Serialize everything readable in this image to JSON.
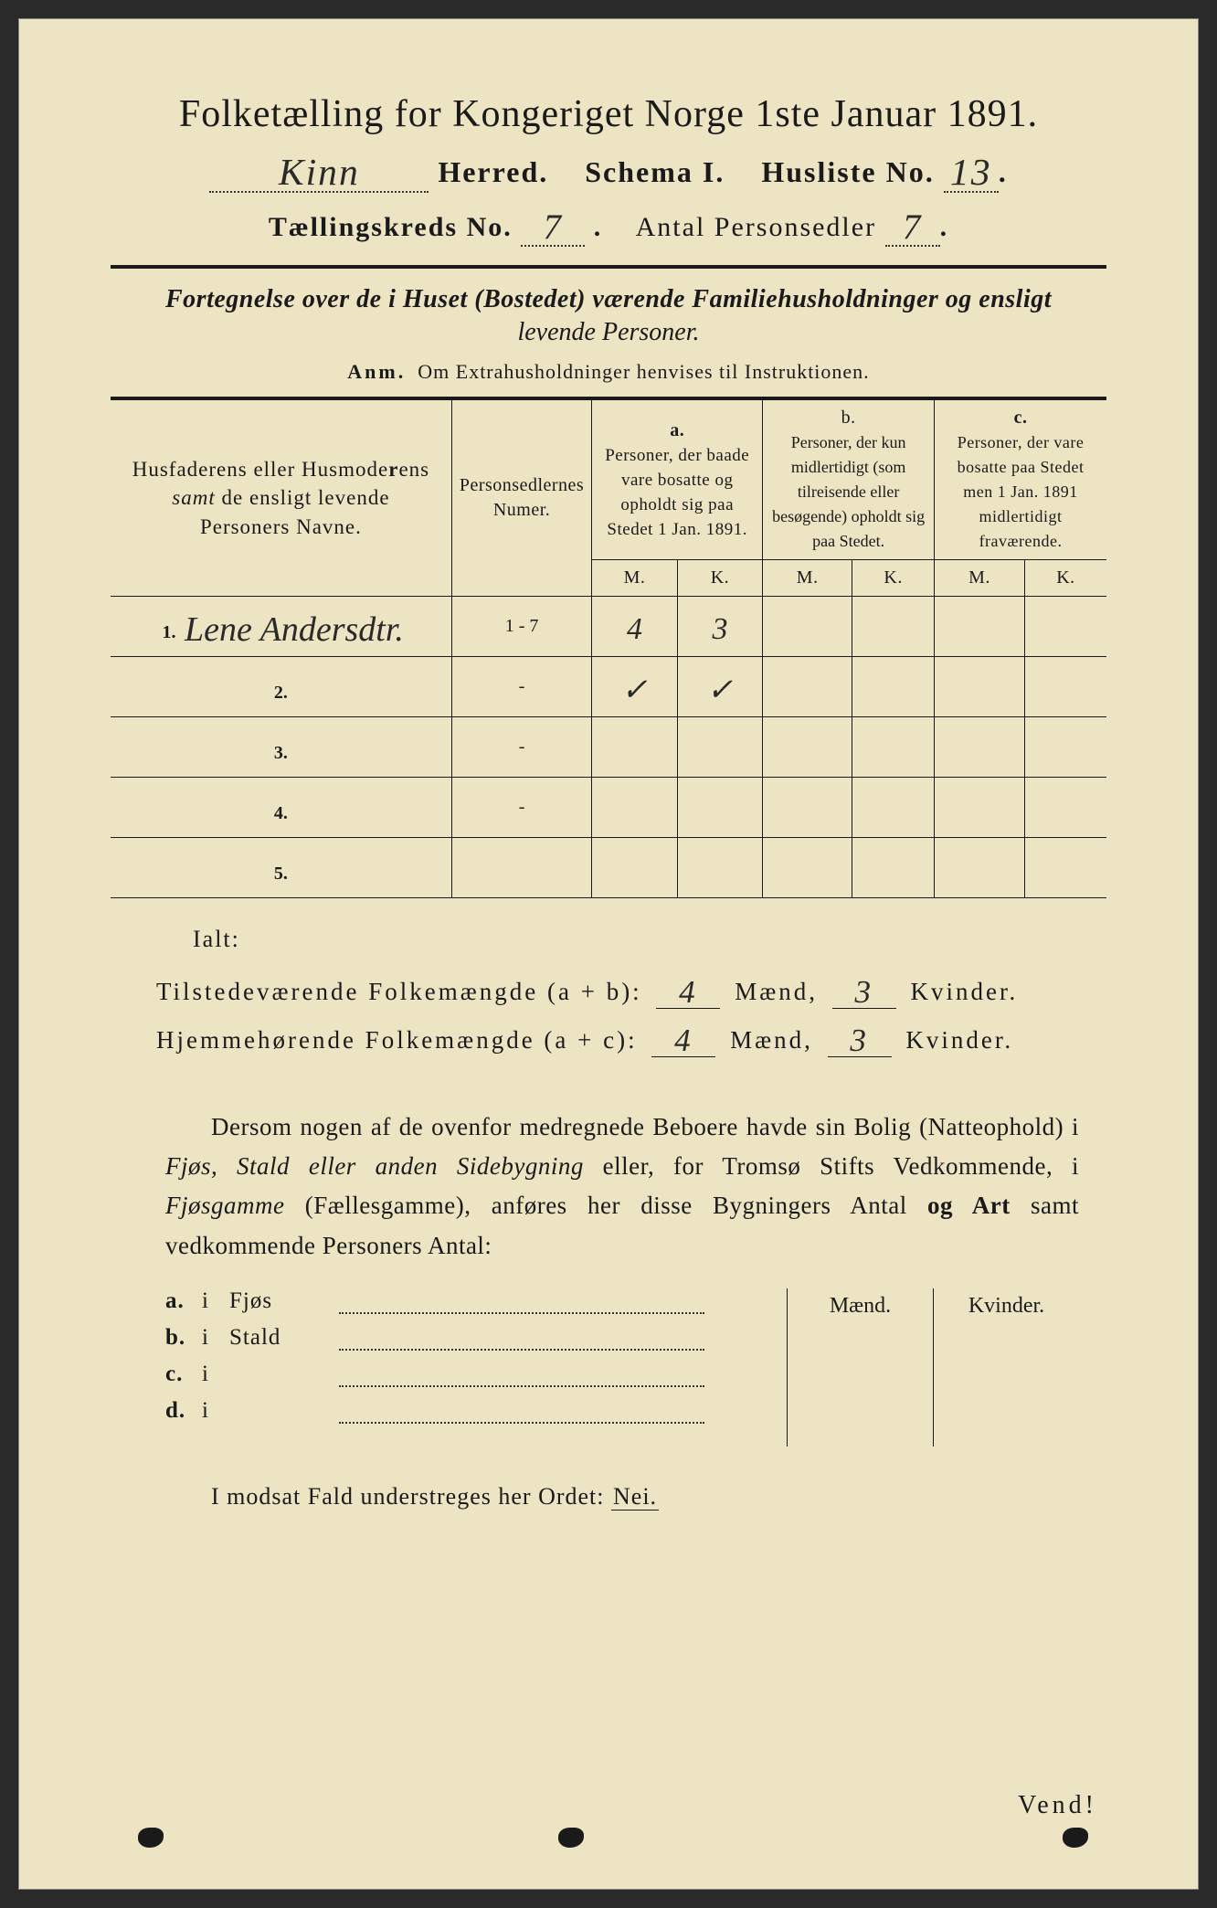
{
  "title": "Folketælling for Kongeriget Norge 1ste Januar 1891.",
  "header": {
    "herred_hand": "Kinn",
    "herred_label": "Herred.",
    "schema_label": "Schema I.",
    "husliste_label": "Husliste No.",
    "husliste_no": "13",
    "kreds_label": "Tællingskreds No.",
    "kreds_no": "7",
    "personsedler_label": "Antal Personsedler",
    "personsedler_no": "7"
  },
  "subtitle1": "Fortegnelse over de i Huset (Bostedet) værende Familiehusholdninger og ensligt",
  "subtitle2": "levende Personer.",
  "anm_prefix": "Anm.",
  "anm_text": "Om Extrahusholdninger henvises til Instruktionen.",
  "table": {
    "col_names": "Husfaderens eller Husmoderens samt de ensligt levende Personers Navne.",
    "col_numer": "Personsedlernes Numer.",
    "col_a_label": "a.",
    "col_a_text": "Personer, der baade vare bosatte og opholdt sig paa Stedet 1 Jan. 1891.",
    "col_b_label": "b.",
    "col_b_text": "Personer, der kun midlertidigt (som tilreisende eller besøgende) opholdt sig paa Stedet.",
    "col_c_label": "c.",
    "col_c_text": "Personer, der vare bosatte paa Stedet men 1 Jan. 1891 midlertidigt fraværende.",
    "m_label": "M.",
    "k_label": "K.",
    "rows": [
      {
        "n": "1.",
        "name": "Lene Andersdtr.",
        "numer": "1 - 7",
        "a_m": "4",
        "a_k": "3",
        "b_m": "",
        "b_k": "",
        "c_m": "",
        "c_k": ""
      },
      {
        "n": "2.",
        "name": "",
        "numer": "-",
        "a_m": "✓",
        "a_k": "✓",
        "b_m": "",
        "b_k": "",
        "c_m": "",
        "c_k": ""
      },
      {
        "n": "3.",
        "name": "",
        "numer": "-",
        "a_m": "",
        "a_k": "",
        "b_m": "",
        "b_k": "",
        "c_m": "",
        "c_k": ""
      },
      {
        "n": "4.",
        "name": "",
        "numer": "-",
        "a_m": "",
        "a_k": "",
        "b_m": "",
        "b_k": "",
        "c_m": "",
        "c_k": ""
      },
      {
        "n": "5.",
        "name": "",
        "numer": "",
        "a_m": "",
        "a_k": "",
        "b_m": "",
        "b_k": "",
        "c_m": "",
        "c_k": ""
      }
    ]
  },
  "totals": {
    "ialt": "Ialt:",
    "line1_label": "Tilstedeværende Folkemængde (a + b):",
    "line2_label": "Hjemmehørende Folkemængde (a + c):",
    "maend_label": "Mænd,",
    "kvinder_label": "Kvinder.",
    "ab_m": "4",
    "ab_k": "3",
    "ac_m": "4",
    "ac_k": "3"
  },
  "para_text": "Dersom nogen af de ovenfor medregnede Beboere havde sin Bolig (Natteophold) i Fjøs, Stald eller anden Sidebygning eller, for Tromsø Stifts Vedkommende, i Fjøsgamme (Fællesgamme), anføres her disse Bygningers Antal og Art samt vedkommende Personers Antal:",
  "outbuild": {
    "maend": "Mænd.",
    "kvinder": "Kvinder.",
    "rows": [
      {
        "lab": "a.",
        "i": "i",
        "txt": "Fjøs"
      },
      {
        "lab": "b.",
        "i": "i",
        "txt": "Stald"
      },
      {
        "lab": "c.",
        "i": "i",
        "txt": ""
      },
      {
        "lab": "d.",
        "i": "i",
        "txt": ""
      }
    ]
  },
  "nei_line_prefix": "I modsat Fald understreges her Ordet:",
  "nei_word": "Nei.",
  "vend": "Vend!",
  "colors": {
    "paper": "#ede4c3",
    "ink": "#1a1a1a",
    "hand": "#2a2a2a"
  }
}
